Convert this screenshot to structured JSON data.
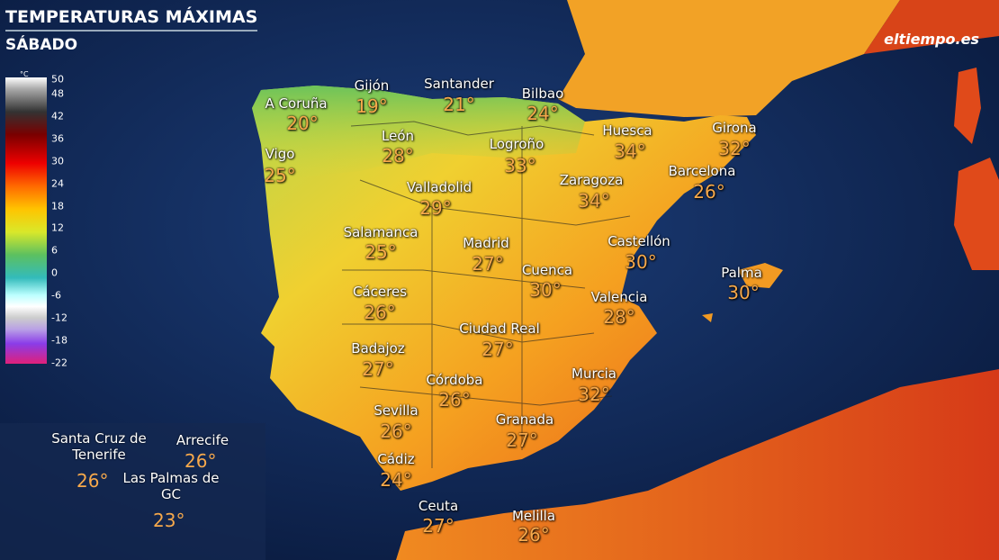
{
  "header": {
    "title": "TEMPERATURAS MÁXIMAS",
    "subtitle": "SÁBADO",
    "logo": "eltiempo.es"
  },
  "legend": {
    "unit": "°C",
    "ticks": [
      50,
      48,
      42,
      36,
      30,
      24,
      18,
      12,
      6,
      0,
      -6,
      -12,
      -18,
      -22
    ]
  },
  "cities": [
    {
      "name": "A Coruña",
      "temp": "20°"
    },
    {
      "name": "Gijón",
      "temp": "19°"
    },
    {
      "name": "Santander",
      "temp": "21°"
    },
    {
      "name": "Bilbao",
      "temp": "24°"
    },
    {
      "name": "Vigo",
      "temp": "25°"
    },
    {
      "name": "León",
      "temp": "28°"
    },
    {
      "name": "Logroño",
      "temp": "33°"
    },
    {
      "name": "Huesca",
      "temp": "34°"
    },
    {
      "name": "Girona",
      "temp": "32°"
    },
    {
      "name": "Barcelona",
      "temp": "26°"
    },
    {
      "name": "Zaragoza",
      "temp": "34°"
    },
    {
      "name": "Valladolid",
      "temp": "29°"
    },
    {
      "name": "Salamanca",
      "temp": "25°"
    },
    {
      "name": "Madrid",
      "temp": "27°"
    },
    {
      "name": "Castellón",
      "temp": "30°"
    },
    {
      "name": "Cuenca",
      "temp": "30°"
    },
    {
      "name": "Palma",
      "temp": "30°"
    },
    {
      "name": "Cáceres",
      "temp": "26°"
    },
    {
      "name": "Valencia",
      "temp": "28°"
    },
    {
      "name": "Ciudad Real",
      "temp": "27°"
    },
    {
      "name": "Badajoz",
      "temp": "27°"
    },
    {
      "name": "Murcia",
      "temp": "32°"
    },
    {
      "name": "Córdoba",
      "temp": "26°"
    },
    {
      "name": "Sevilla",
      "temp": "26°"
    },
    {
      "name": "Granada",
      "temp": "27°"
    },
    {
      "name": "Cádiz",
      "temp": "24°"
    },
    {
      "name": "Ceuta",
      "temp": "27°"
    },
    {
      "name": "Melilla",
      "temp": "26°"
    }
  ],
  "canarias": [
    {
      "name": "Santa Cruz de Tenerife",
      "temp": "26°"
    },
    {
      "name": "Arrecife",
      "temp": "26°"
    },
    {
      "name": "Las Palmas de GC",
      "temp": "23°"
    }
  ]
}
